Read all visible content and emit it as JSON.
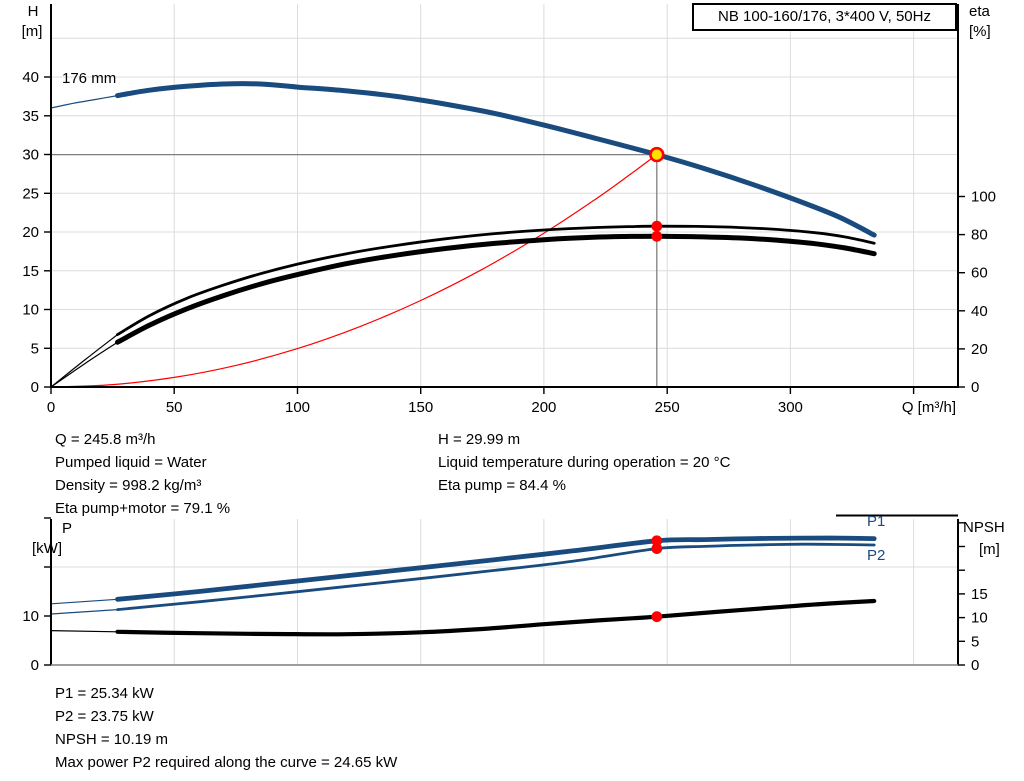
{
  "colors": {
    "blue": "#1a4b7e",
    "red": "#ff0000",
    "yellow": "#ffdf00",
    "grid": "#dcdcdc",
    "gray": "#7f7f7f",
    "black": "#000000"
  },
  "title_box": {
    "text": "NB 100-160/176, 3*400 V, 50Hz"
  },
  "labels": {
    "h_name": "H",
    "h_unit": "[m]",
    "eta_name": "eta",
    "eta_unit": "[%]",
    "q_axis": "Q [m³/h]",
    "impeller": "176 mm",
    "p_name": "P",
    "p_unit": "[kW]",
    "npsh_name": "NPSH",
    "npsh_unit": "[m]",
    "p1": "P1",
    "p2": "P2"
  },
  "annotations": {
    "mid_left": [
      "Q = 245.8 m³/h",
      "Pumped liquid = Water",
      "Density = 998.2 kg/m³",
      "Eta pump+motor = 79.1 %"
    ],
    "mid_right": [
      "H = 29.99 m",
      "Liquid temperature during operation = 20 °C",
      "Eta pump = 84.4 %"
    ],
    "bottom": [
      "P1 = 25.34 kW",
      "P2 = 23.75 kW",
      "NPSH = 10.19 m",
      "Max power P2 required along the curve = 24.65 kW"
    ]
  },
  "chart_data": [
    {
      "id": "qh",
      "type": "line",
      "title": "NB 100-160/176, 3*400 V, 50Hz",
      "x_axis": {
        "label": "Q [m³/h]",
        "min": 0,
        "max": 368,
        "ticks": [
          0,
          50,
          100,
          150,
          200,
          250,
          300,
          350
        ],
        "tick_labels": [
          "0",
          "50",
          "100",
          "150",
          "200",
          "250",
          "300",
          ""
        ]
      },
      "y_left": {
        "label": "H [m]",
        "min": 0,
        "max": 49.2,
        "ticks": [
          0,
          5,
          10,
          15,
          20,
          25,
          30,
          35,
          40
        ],
        "grid": [
          5,
          10,
          15,
          20,
          25,
          30,
          35,
          40,
          45
        ]
      },
      "y_right": {
        "label": "eta [%]",
        "min": 0,
        "max": 200,
        "ticks": [
          0,
          20,
          40,
          60,
          80,
          100
        ]
      },
      "series": [
        {
          "name": "system-curve",
          "axis": "H",
          "color": "red",
          "width": 1.2,
          "points": [
            [
              0,
              0
            ],
            [
              25,
              0.31
            ],
            [
              50,
              1.24
            ],
            [
              75,
              2.79
            ],
            [
              100,
              4.96
            ],
            [
              125,
              7.75
            ],
            [
              150,
              11.16
            ],
            [
              175,
              15.19
            ],
            [
              200,
              19.85
            ],
            [
              220,
              24.02
            ],
            [
              235,
              27.43
            ],
            [
              245.8,
              29.99
            ]
          ]
        },
        {
          "name": "eta-pump-curve",
          "axis": "eta",
          "color": "black",
          "width": 2.8,
          "lead_in": [
            [
              0,
              0
            ],
            [
              14,
              14.5
            ],
            [
              27,
              27.5
            ]
          ],
          "points": [
            [
              27,
              27.5
            ],
            [
              40,
              37.5
            ],
            [
              55,
              46.5
            ],
            [
              70,
              53.5
            ],
            [
              85,
              59.5
            ],
            [
              100,
              64.5
            ],
            [
              120,
              70
            ],
            [
              140,
              74.3
            ],
            [
              160,
              77.8
            ],
            [
              180,
              80.5
            ],
            [
              200,
              82.4
            ],
            [
              220,
              83.7
            ],
            [
              235,
              84.2
            ],
            [
              245.8,
              84.4
            ],
            [
              262,
              84.3
            ],
            [
              280,
              83.7
            ],
            [
              295,
              82.7
            ],
            [
              310,
              81.0
            ],
            [
              322,
              78.8
            ],
            [
              334,
              75.5
            ]
          ]
        },
        {
          "name": "eta-pump-motor-curve",
          "axis": "eta",
          "color": "black",
          "width": 5,
          "lead_in": [
            [
              0,
              0
            ],
            [
              14,
              12.5
            ],
            [
              27,
              23.5
            ]
          ],
          "points": [
            [
              27,
              23.5
            ],
            [
              40,
              32.5
            ],
            [
              55,
              41
            ],
            [
              70,
              48
            ],
            [
              85,
              54
            ],
            [
              100,
              59
            ],
            [
              120,
              64.8
            ],
            [
              140,
              69.2
            ],
            [
              160,
              72.7
            ],
            [
              180,
              75.4
            ],
            [
              200,
              77.3
            ],
            [
              220,
              78.6
            ],
            [
              235,
              79.05
            ],
            [
              245.8,
              79.1
            ],
            [
              262,
              78.9
            ],
            [
              280,
              78.2
            ],
            [
              295,
              77.0
            ],
            [
              310,
              75.2
            ],
            [
              322,
              73.0
            ],
            [
              334,
              70
            ]
          ]
        },
        {
          "name": "pump-curve",
          "legend": "176 mm",
          "axis": "H",
          "color": "blue",
          "width": 5,
          "lead_in": [
            [
              0,
              36
            ],
            [
              9,
              36.6
            ],
            [
              18,
              37.1
            ],
            [
              27,
              37.6
            ]
          ],
          "points": [
            [
              27,
              37.6
            ],
            [
              40,
              38.3
            ],
            [
              55,
              38.8
            ],
            [
              70,
              39.1
            ],
            [
              85,
              39.1
            ],
            [
              100,
              38.7
            ],
            [
              120,
              38.2
            ],
            [
              140,
              37.5
            ],
            [
              160,
              36.5
            ],
            [
              180,
              35.3
            ],
            [
              200,
              33.8
            ],
            [
              222,
              32.0
            ],
            [
              245.8,
              29.99
            ],
            [
              265,
              28.2
            ],
            [
              285,
              26.1
            ],
            [
              305,
              23.8
            ],
            [
              320,
              21.9
            ],
            [
              334,
              19.6
            ]
          ]
        }
      ],
      "operating_point": {
        "Q": 245.8,
        "H": 29.99
      },
      "eta_markers": [
        {
          "Q": 245.8,
          "eta": 84.4
        },
        {
          "Q": 245.8,
          "eta": 79.1
        }
      ]
    },
    {
      "id": "power-npsh",
      "type": "line",
      "x_axis": {
        "label": "",
        "min": 0,
        "max": 368,
        "ticks": [
          0,
          50,
          100,
          150,
          200,
          250,
          300,
          350
        ],
        "tick_labels": [
          "",
          "",
          "",
          "",
          "",
          "",
          "",
          ""
        ]
      },
      "y_left": {
        "label": "P [kW]",
        "min": 0,
        "max": 29.8,
        "ticks": [
          0,
          10,
          20,
          30
        ],
        "tick_labels": [
          "0",
          "10",
          "",
          ""
        ],
        "grid": [
          20
        ]
      },
      "y_right": {
        "label": "NPSH [m]",
        "min": 0,
        "max": 30.8,
        "ticks": [
          0,
          5,
          10,
          15,
          20,
          25,
          30
        ],
        "tick_labels": [
          "0",
          "5",
          "10",
          "15",
          "",
          "",
          ""
        ]
      },
      "series": [
        {
          "name": "npsh-curve",
          "axis": "NPSH",
          "color": "black",
          "width": 4.2,
          "lead_in": [
            [
              0,
              7.25
            ],
            [
              27,
              7.0
            ]
          ],
          "points": [
            [
              27,
              7.0
            ],
            [
              60,
              6.7
            ],
            [
              90,
              6.55
            ],
            [
              120,
              6.5
            ],
            [
              150,
              6.9
            ],
            [
              175,
              7.6
            ],
            [
              200,
              8.6
            ],
            [
              222,
              9.4
            ],
            [
              245.8,
              10.19
            ],
            [
              270,
              11.2
            ],
            [
              295,
              12.2
            ],
            [
              315,
              12.95
            ],
            [
              334,
              13.5
            ]
          ]
        },
        {
          "name": "p2-curve",
          "legend": "P2",
          "axis": "P",
          "color": "blue",
          "width": 2.8,
          "lead_in": [
            [
              0,
              10.4
            ],
            [
              27,
              11.3
            ]
          ],
          "points": [
            [
              27,
              11.3
            ],
            [
              60,
              12.9
            ],
            [
              100,
              14.95
            ],
            [
              140,
              17.1
            ],
            [
              180,
              19.3
            ],
            [
              212,
              21.2
            ],
            [
              245.8,
              23.75
            ],
            [
              265,
              24.2
            ],
            [
              285,
              24.5
            ],
            [
              305,
              24.65
            ],
            [
              320,
              24.6
            ],
            [
              334,
              24.5
            ]
          ]
        },
        {
          "name": "p1-curve",
          "legend": "P1",
          "axis": "P",
          "color": "blue",
          "width": 4.8,
          "lead_in": [
            [
              0,
              12.5
            ],
            [
              27,
              13.4
            ]
          ],
          "points": [
            [
              27,
              13.4
            ],
            [
              60,
              15.0
            ],
            [
              100,
              17.15
            ],
            [
              140,
              19.3
            ],
            [
              180,
              21.5
            ],
            [
              212,
              23.3
            ],
            [
              245.8,
              25.34
            ],
            [
              265,
              25.6
            ],
            [
              285,
              25.8
            ],
            [
              305,
              25.9
            ],
            [
              320,
              25.9
            ],
            [
              334,
              25.8
            ]
          ]
        }
      ],
      "markers": [
        {
          "on": "p1-curve",
          "Q": 245.8,
          "P": 25.34
        },
        {
          "on": "p2-curve",
          "Q": 245.8,
          "P": 23.75
        },
        {
          "on": "npsh-curve",
          "Q": 245.8,
          "NPSH": 10.19
        }
      ]
    }
  ]
}
